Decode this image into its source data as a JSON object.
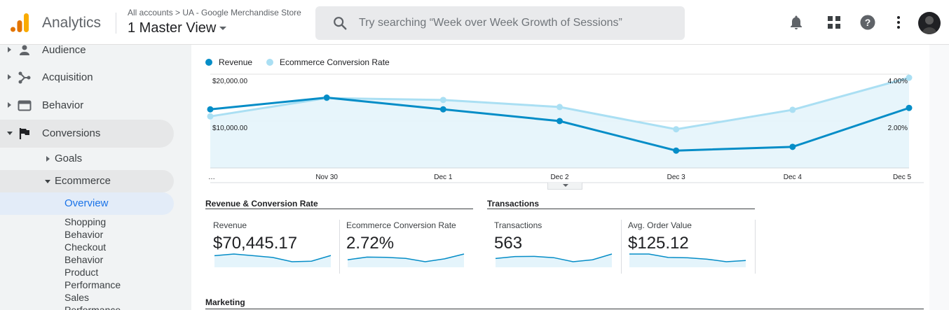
{
  "header": {
    "app_name": "Analytics",
    "breadcrumb": "All accounts > UA - Google Merchandise Store",
    "view_name": "1 Master View",
    "search_placeholder": "Try searching “Week over Week Growth of Sessions”",
    "icons": [
      "bell-icon",
      "apps-grid-icon",
      "help-icon",
      "more-vert-icon",
      "avatar"
    ]
  },
  "sidebar": {
    "items": [
      {
        "label": "Audience",
        "icon": "person-icon"
      },
      {
        "label": "Acquisition",
        "icon": "acquisition-icon"
      },
      {
        "label": "Behavior",
        "icon": "behavior-icon"
      },
      {
        "label": "Conversions",
        "icon": "flag-icon"
      }
    ],
    "sub_items": [
      {
        "label": "Goals"
      },
      {
        "label": "Ecommerce"
      }
    ],
    "ecommerce_items": [
      "Overview",
      "Shopping",
      "Behavior",
      "Checkout",
      "Behavior",
      "Product",
      "Performance",
      "Sales",
      "Performance"
    ]
  },
  "colors": {
    "revenue": "#058dc7",
    "conversion_rate": "#aadff3",
    "active_link": "#1a73e8"
  },
  "chart_data": {
    "type": "line",
    "legend": [
      "Revenue",
      "Ecommerce Conversion Rate"
    ],
    "legend_position": "top-left",
    "categories": [
      "…",
      "Nov 30",
      "Dec 1",
      "Dec 2",
      "Dec 3",
      "Dec 4",
      "Dec 5"
    ],
    "series": [
      {
        "name": "Revenue",
        "axis": "left",
        "values": [
          12500,
          15000,
          12500,
          10000,
          3700,
          4500,
          12800
        ]
      },
      {
        "name": "Ecommerce Conversion Rate",
        "axis": "right",
        "values": [
          2.2,
          2.98,
          2.9,
          2.6,
          1.65,
          2.48,
          3.85
        ]
      }
    ],
    "y_left_ticks": [
      "$20,000.00",
      "$10,000.00"
    ],
    "y_left_range": [
      0,
      20000
    ],
    "y_right_ticks": [
      "4.00%",
      "2.00%"
    ],
    "y_right_range": [
      0,
      4
    ],
    "grid": true
  },
  "sections": {
    "revenue_conversion": {
      "title": "Revenue & Conversion Rate",
      "metrics": [
        {
          "label": "Revenue",
          "value": "$70,445.17",
          "spark": [
            12500,
            15000,
            12500,
            10000,
            3700,
            4500,
            12800
          ]
        },
        {
          "label": "Ecommerce Conversion Rate",
          "value": "2.72%",
          "spark": [
            2.2,
            2.98,
            2.9,
            2.6,
            1.65,
            2.48,
            3.85
          ]
        }
      ]
    },
    "transactions": {
      "title": "Transactions",
      "metrics": [
        {
          "label": "Transactions",
          "value": "563",
          "spark": [
            70,
            88,
            90,
            78,
            40,
            58,
            112
          ]
        },
        {
          "label": "Avg. Order Value",
          "value": "$125.12",
          "spark": [
            150,
            150,
            130,
            128,
            120,
            105,
            112
          ]
        }
      ]
    },
    "marketing": {
      "title": "Marketing"
    }
  }
}
